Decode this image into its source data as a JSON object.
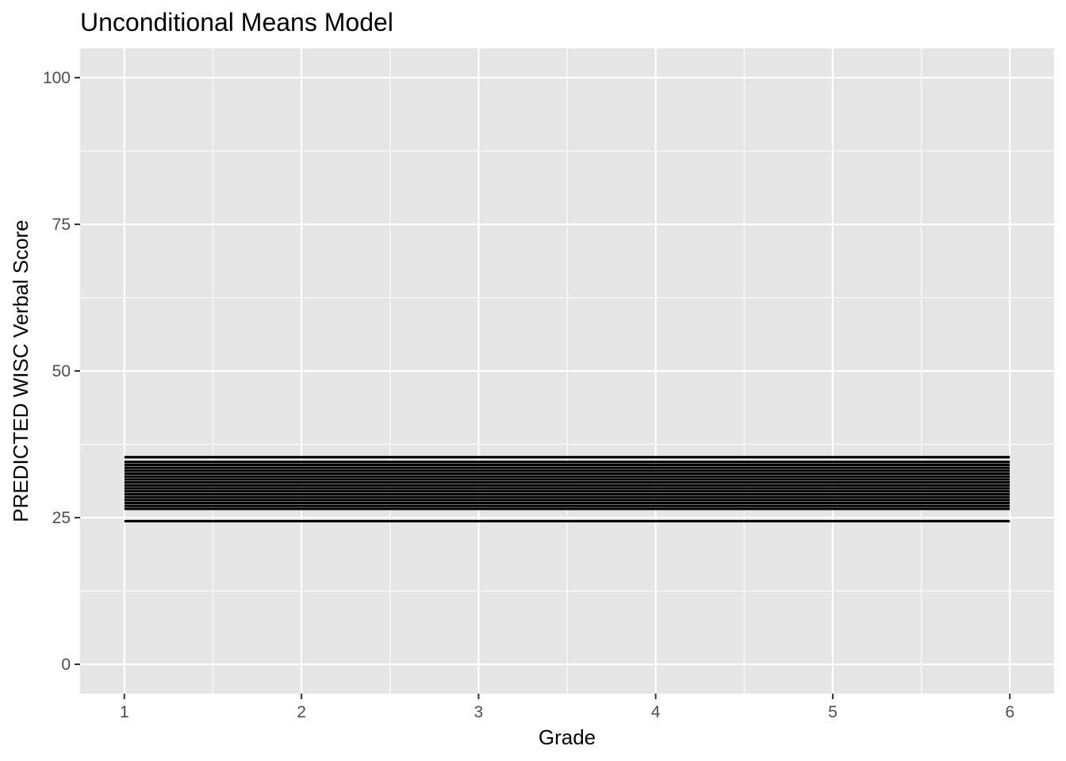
{
  "chart_data": {
    "type": "line",
    "title": "Unconditional Means Model",
    "xlabel": "Grade",
    "ylabel": "PREDICTED WISC Verbal Score",
    "xlim": [
      0.75,
      6.25
    ],
    "ylim": [
      -5,
      105
    ],
    "x_ticks": [
      1,
      2,
      3,
      4,
      5,
      6
    ],
    "y_ticks": [
      0,
      25,
      50,
      75,
      100
    ],
    "x_tick_labels": [
      "1",
      "2",
      "3",
      "4",
      "5",
      "6"
    ],
    "y_tick_labels": [
      "0",
      "25",
      "50",
      "75",
      "100"
    ],
    "x_minor_ticks": [
      1.5,
      2.5,
      3.5,
      4.5,
      5.5
    ],
    "y_minor_ticks": [
      12.5,
      37.5,
      62.5,
      87.5
    ],
    "grid": true,
    "legend": "none",
    "line_color": "#000000",
    "panel_background": "#e5e5e5",
    "grid_color": "#ffffff",
    "series": [
      {
        "x": [
          1,
          6
        ],
        "y": [
          24.4,
          24.4
        ]
      },
      {
        "x": [
          1,
          6
        ],
        "y": [
          26.5,
          26.5
        ]
      },
      {
        "x": [
          1,
          6
        ],
        "y": [
          27.0,
          27.0
        ]
      },
      {
        "x": [
          1,
          6
        ],
        "y": [
          27.5,
          27.5
        ]
      },
      {
        "x": [
          1,
          6
        ],
        "y": [
          28.0,
          28.0
        ]
      },
      {
        "x": [
          1,
          6
        ],
        "y": [
          28.5,
          28.5
        ]
      },
      {
        "x": [
          1,
          6
        ],
        "y": [
          29.0,
          29.0
        ]
      },
      {
        "x": [
          1,
          6
        ],
        "y": [
          29.5,
          29.5
        ]
      },
      {
        "x": [
          1,
          6
        ],
        "y": [
          30.0,
          30.0
        ]
      },
      {
        "x": [
          1,
          6
        ],
        "y": [
          30.5,
          30.5
        ]
      },
      {
        "x": [
          1,
          6
        ],
        "y": [
          31.0,
          31.0
        ]
      },
      {
        "x": [
          1,
          6
        ],
        "y": [
          31.5,
          31.5
        ]
      },
      {
        "x": [
          1,
          6
        ],
        "y": [
          32.0,
          32.0
        ]
      },
      {
        "x": [
          1,
          6
        ],
        "y": [
          32.5,
          32.5
        ]
      },
      {
        "x": [
          1,
          6
        ],
        "y": [
          33.0,
          33.0
        ]
      },
      {
        "x": [
          1,
          6
        ],
        "y": [
          33.5,
          33.5
        ]
      },
      {
        "x": [
          1,
          6
        ],
        "y": [
          34.0,
          34.0
        ]
      },
      {
        "x": [
          1,
          6
        ],
        "y": [
          34.5,
          34.5
        ]
      },
      {
        "x": [
          1,
          6
        ],
        "y": [
          35.3,
          35.3
        ]
      }
    ]
  }
}
